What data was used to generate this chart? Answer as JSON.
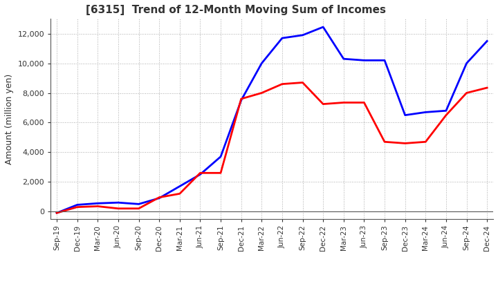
{
  "title": "[6315]  Trend of 12-Month Moving Sum of Incomes",
  "ylabel": "Amount (million yen)",
  "ylim": [
    -500,
    13000
  ],
  "yticks": [
    0,
    2000,
    4000,
    6000,
    8000,
    10000,
    12000
  ],
  "background_color": "#ffffff",
  "grid_color": "#aaaaaa",
  "ordinary_income_color": "#0000ff",
  "net_income_color": "#ff0000",
  "x_labels": [
    "Sep-19",
    "Dec-19",
    "Mar-20",
    "Jun-20",
    "Sep-20",
    "Dec-20",
    "Mar-21",
    "Jun-21",
    "Sep-21",
    "Dec-21",
    "Mar-22",
    "Jun-22",
    "Sep-22",
    "Dec-22",
    "Mar-23",
    "Jun-23",
    "Sep-23",
    "Dec-23",
    "Mar-24",
    "Jun-24",
    "Sep-24",
    "Dec-24"
  ],
  "ordinary_income": [
    -100,
    450,
    550,
    600,
    500,
    900,
    1700,
    2500,
    3700,
    7500,
    10000,
    11700,
    11900,
    12450,
    10300,
    10200,
    10200,
    6500,
    6700,
    6800,
    10000,
    11500
  ],
  "net_income": [
    -100,
    300,
    350,
    200,
    200,
    950,
    1200,
    2600,
    2600,
    7600,
    8000,
    8600,
    8700,
    7250,
    7350,
    7350,
    4700,
    4600,
    4700,
    6500,
    8000,
    8350
  ]
}
